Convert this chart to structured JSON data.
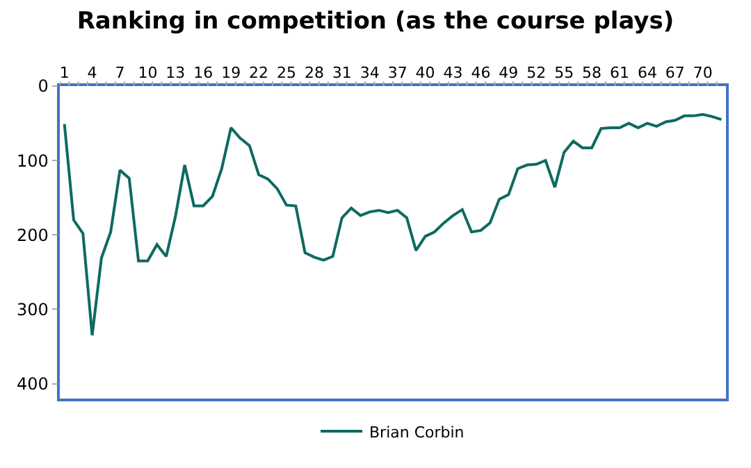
{
  "chart_data": {
    "type": "line",
    "title": "Ranking in competition (as the course plays)",
    "categories": [
      "1",
      null,
      null,
      "4",
      null,
      null,
      "7",
      null,
      null,
      "10",
      null,
      null,
      "13",
      null,
      null,
      "16",
      null,
      null,
      "19",
      null,
      null,
      "22",
      null,
      null,
      "25",
      null,
      null,
      "28",
      null,
      null,
      "31",
      null,
      null,
      "34",
      null,
      null,
      "37",
      null,
      null,
      "40",
      null,
      null,
      "43",
      null,
      null,
      "46",
      null,
      null,
      "49",
      null,
      null,
      "52",
      null,
      null,
      "55",
      null,
      null,
      "58",
      null,
      null,
      "61",
      null,
      null,
      "64",
      null,
      null,
      "67",
      null,
      null,
      "70",
      null,
      null
    ],
    "series": [
      {
        "name": "Brian Corbin",
        "color": "#0e6a61",
        "values": [
          51,
          180,
          198,
          335,
          231,
          196,
          113,
          124,
          235,
          235,
          213,
          229,
          175,
          106,
          161,
          161,
          148,
          111,
          56,
          70,
          80,
          119,
          125,
          138,
          160,
          161,
          224,
          230,
          234,
          229,
          177,
          164,
          174,
          169,
          167,
          170,
          167,
          177,
          221,
          202,
          196,
          184,
          174,
          166,
          196,
          194,
          184,
          152,
          146,
          111,
          106,
          105,
          100,
          136,
          89,
          74,
          83,
          83,
          57,
          56,
          56,
          50,
          56,
          50,
          54,
          48,
          46,
          40,
          40,
          38,
          41,
          45
        ]
      }
    ],
    "ylim": [
      420,
      0
    ],
    "yticks": [
      0,
      100,
      200,
      300,
      400
    ],
    "legend": "bottom",
    "marker": "none",
    "line_style": "solid"
  }
}
